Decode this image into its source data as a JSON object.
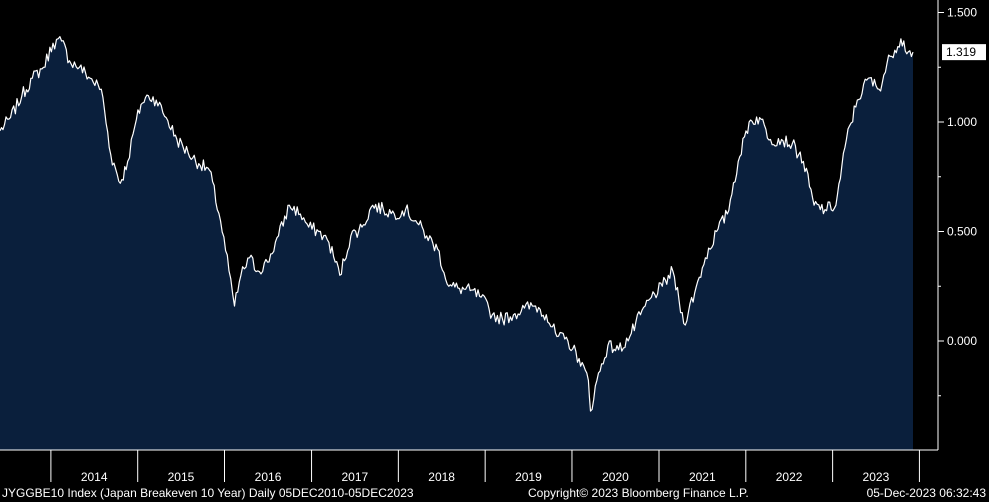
{
  "footer": {
    "left": "JYGGBE10 Index (Japan Breakeven 10 Year)  Daily 05DEC2010-05DEC2023",
    "center": "Copyright© 2023 Bloomberg Finance L.P.",
    "right": "05-Dec-2023 06:32:43"
  },
  "colors": {
    "background": "#000000",
    "area_fill": "#0a1f3c",
    "line": "#ffffff",
    "text": "#ffffff"
  },
  "chart_data": {
    "type": "area",
    "title": "",
    "xlabel": "",
    "ylabel": "",
    "ylim": [
      -0.5,
      1.55
    ],
    "yticks": [
      1.5,
      1.0,
      0.5,
      0.0
    ],
    "ytick_labels": [
      "1.500",
      "1.000",
      "0.500",
      "0.000"
    ],
    "xtick_labels": [
      "2014",
      "2015",
      "2016",
      "2017",
      "2018",
      "2019",
      "2020",
      "2021",
      "2022",
      "2023"
    ],
    "last_value_label": "1.319",
    "last_value": 1.319,
    "grid": false,
    "legend": "none",
    "series": [
      {
        "x": [
          "2013-06-01",
          "2013-07-15",
          "2013-09-01",
          "2013-10-15",
          "2013-12-01",
          "2014-01-10",
          "2014-02-15",
          "2014-03-20",
          "2014-05-01",
          "2014-06-15",
          "2014-08-01",
          "2014-09-10",
          "2014-10-20",
          "2014-11-20",
          "2014-12-20",
          "2015-01-15",
          "2015-02-15",
          "2015-03-20",
          "2015-05-01",
          "2015-06-15",
          "2015-08-01",
          "2015-09-15",
          "2015-10-30",
          "2015-12-15",
          "2016-01-20",
          "2016-02-12",
          "2016-03-10",
          "2016-04-15",
          "2016-05-20",
          "2016-06-30",
          "2016-08-15",
          "2016-09-30",
          "2016-11-15",
          "2016-12-20",
          "2017-01-31",
          "2017-03-15",
          "2017-04-30",
          "2017-06-15",
          "2017-08-01",
          "2017-09-15",
          "2017-10-30",
          "2017-12-15",
          "2018-01-31",
          "2018-03-15",
          "2018-04-30",
          "2018-06-15",
          "2018-08-01",
          "2018-09-15",
          "2018-10-30",
          "2018-12-15",
          "2019-01-31",
          "2019-03-15",
          "2019-04-30",
          "2019-06-15",
          "2019-08-01",
          "2019-09-15",
          "2019-10-30",
          "2019-12-15",
          "2020-01-31",
          "2020-03-10",
          "2020-03-19",
          "2020-04-15",
          "2020-05-31",
          "2020-07-15",
          "2020-08-31",
          "2020-10-15",
          "2020-11-30",
          "2021-01-15",
          "2021-02-28",
          "2021-04-15",
          "2021-05-31",
          "2021-07-15",
          "2021-08-31",
          "2021-10-15",
          "2021-11-30",
          "2022-01-15",
          "2022-02-28",
          "2022-04-15",
          "2022-05-31",
          "2022-07-15",
          "2022-08-31",
          "2022-10-15",
          "2022-11-30",
          "2023-01-15",
          "2023-02-28",
          "2023-04-15",
          "2023-05-31",
          "2023-07-15",
          "2023-08-31",
          "2023-10-15",
          "2023-11-15",
          "2023-12-05"
        ],
        "values": [
          0.96,
          1.02,
          1.12,
          1.2,
          1.25,
          1.36,
          1.37,
          1.28,
          1.25,
          1.2,
          1.15,
          0.85,
          0.72,
          0.82,
          0.98,
          1.08,
          1.12,
          1.1,
          1.02,
          0.92,
          0.86,
          0.81,
          0.78,
          0.55,
          0.32,
          0.16,
          0.3,
          0.38,
          0.32,
          0.36,
          0.48,
          0.62,
          0.58,
          0.52,
          0.5,
          0.45,
          0.3,
          0.48,
          0.52,
          0.62,
          0.6,
          0.58,
          0.6,
          0.55,
          0.48,
          0.42,
          0.25,
          0.24,
          0.23,
          0.2,
          0.12,
          0.1,
          0.12,
          0.15,
          0.16,
          0.12,
          0.02,
          0.0,
          -0.08,
          -0.18,
          -0.32,
          -0.18,
          -0.02,
          -0.04,
          0.02,
          0.12,
          0.2,
          0.25,
          0.32,
          0.08,
          0.22,
          0.38,
          0.5,
          0.58,
          0.82,
          1.0,
          1.02,
          0.92,
          0.92,
          0.9,
          0.82,
          0.62,
          0.6,
          0.62,
          0.92,
          1.1,
          1.2,
          1.15,
          1.3,
          1.38,
          1.32,
          1.319
        ]
      }
    ]
  }
}
